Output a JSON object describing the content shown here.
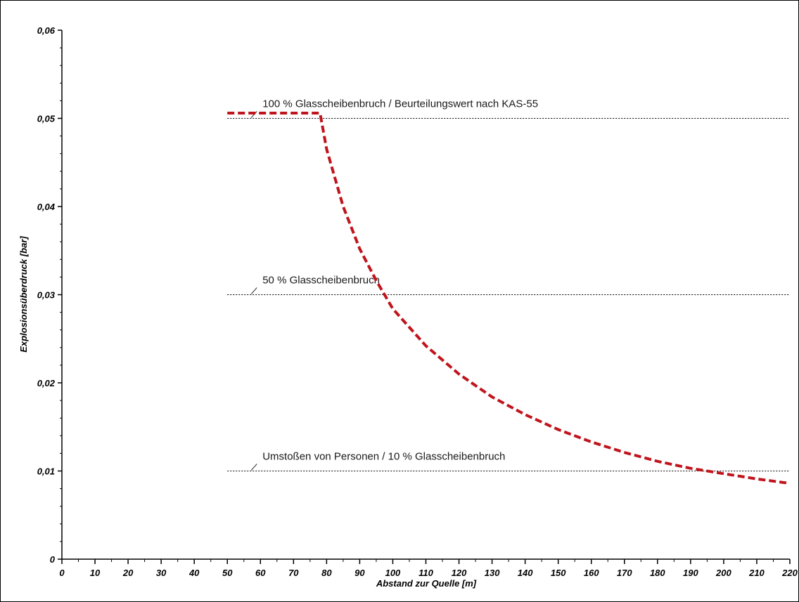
{
  "chart_data": {
    "type": "line",
    "xlabel": "Abstand zur Quelle [m]",
    "ylabel": "Explosionsüberdruck [bar]",
    "xlim": [
      0,
      220
    ],
    "ylim": [
      0,
      0.06
    ],
    "x_ticks": [
      0,
      10,
      20,
      30,
      40,
      50,
      60,
      70,
      80,
      90,
      100,
      110,
      120,
      130,
      140,
      150,
      160,
      170,
      180,
      190,
      200,
      210,
      220
    ],
    "y_ticks": [
      0,
      0.01,
      0.02,
      0.03,
      0.04,
      0.05,
      0.06
    ],
    "y_tick_labels": [
      "0",
      "0,01",
      "0,02",
      "0,03",
      "0,04",
      "0,05",
      "0,06"
    ],
    "grid": false,
    "series": [
      {
        "color": "#c0141c",
        "style": "dashed",
        "points": [
          [
            50,
            0.0506
          ],
          [
            78,
            0.0506
          ],
          [
            80,
            0.0465
          ],
          [
            85,
            0.04
          ],
          [
            90,
            0.0352
          ],
          [
            95,
            0.0316
          ],
          [
            100,
            0.0284
          ],
          [
            110,
            0.0242
          ],
          [
            120,
            0.021
          ],
          [
            130,
            0.0184
          ],
          [
            140,
            0.0164
          ],
          [
            150,
            0.0147
          ],
          [
            160,
            0.0133
          ],
          [
            170,
            0.0121
          ],
          [
            180,
            0.0111
          ],
          [
            190,
            0.0103
          ],
          [
            200,
            0.0097
          ],
          [
            210,
            0.0091
          ],
          [
            220,
            0.0086
          ]
        ]
      }
    ],
    "reference_lines": [
      {
        "y": 0.05,
        "x_start": 50,
        "x_end": 220,
        "label": "100 % Glasscheibenbruch / Beurteilungswert nach KAS-55"
      },
      {
        "y": 0.03,
        "x_start": 50,
        "x_end": 220,
        "label": "50 % Glasscheibenbruch"
      },
      {
        "y": 0.01,
        "x_start": 50,
        "x_end": 220,
        "label": "Umstoßen von Personen / 10 % Glasscheibenbruch"
      }
    ]
  }
}
